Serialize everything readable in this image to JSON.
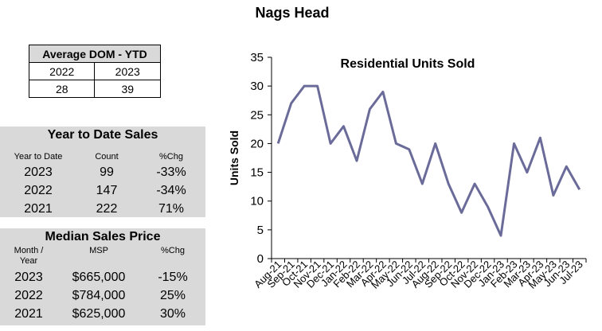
{
  "page_title": "Nags Head",
  "dom_table": {
    "header": "Average DOM - YTD",
    "years": [
      "2022",
      "2023"
    ],
    "values": [
      "28",
      "39"
    ]
  },
  "ytd_sales": {
    "title": "Year to Date Sales",
    "headers": [
      "Year to Date",
      "Count",
      "%Chg"
    ],
    "rows": [
      [
        "2023",
        "99",
        "-33%"
      ],
      [
        "2022",
        "147",
        "-34%"
      ],
      [
        "2021",
        "222",
        "71%"
      ]
    ]
  },
  "median_price": {
    "title": "Median Sales Price",
    "headers": [
      "Month /\nYear",
      "MSP",
      "%Chg"
    ],
    "rows": [
      [
        "2023",
        "$665,000",
        "-15%"
      ],
      [
        "2022",
        "$784,000",
        "25%"
      ],
      [
        "2021",
        "$625,000",
        "30%"
      ]
    ]
  },
  "chart_data": {
    "type": "line",
    "title": "Residential Units Sold",
    "xlabel": "",
    "ylabel": "Units Sold",
    "ylim": [
      0,
      35
    ],
    "yticks": [
      0,
      5,
      10,
      15,
      20,
      25,
      30,
      35
    ],
    "categories": [
      "Aug-21",
      "Sep-21",
      "Oct-21",
      "Nov-21",
      "Dec-21",
      "Jan-22",
      "Feb-22",
      "Mar-22",
      "Apr-22",
      "May-22",
      "Jun-22",
      "Jul-22",
      "Aug-22",
      "Sep-22",
      "Oct-22",
      "Nov-22",
      "Dec-22",
      "Jan-23",
      "Feb-23",
      "Mar-23",
      "Apr-23",
      "May-23",
      "Jun-23",
      "Jul-23"
    ],
    "series": [
      {
        "name": "Residential Units Sold",
        "color": "#6b6b9a",
        "values": [
          20,
          27,
          30,
          30,
          20,
          23,
          17,
          26,
          29,
          20,
          19,
          13,
          20,
          13,
          8,
          13,
          9,
          4,
          20,
          15,
          21,
          11,
          16,
          12
        ]
      }
    ]
  }
}
